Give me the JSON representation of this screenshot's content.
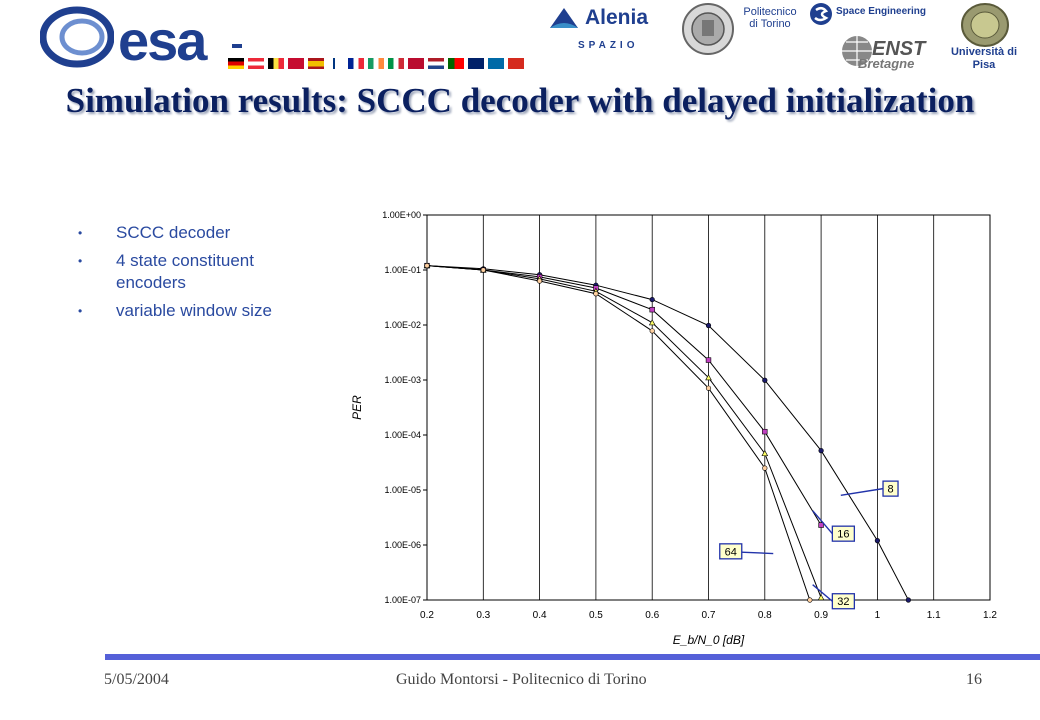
{
  "header": {
    "esa_logo_text": "esa",
    "alenia_text": "Alenia",
    "spazio_text": "SPAZIO",
    "polito_text": "Politecnico di Torino",
    "space_engineering_text": "Space Engineering",
    "enst_text": "ENST",
    "bretagne_text": "Bretagne",
    "pisa_text": "Università di Pisa",
    "colors": {
      "esa_blue": "#1f3f8f",
      "footer_bar": "#5560d8"
    }
  },
  "slide": {
    "title": "Simulation results: SCCC decoder with delayed initialization",
    "bullets": [
      "SCCC decoder",
      "4 state constituent encoders",
      "variable window size"
    ],
    "bullet_icon": "bullet-dot-icon"
  },
  "footer": {
    "date": "5/05/2004",
    "author": "Guido Montorsi - Politecnico di Torino",
    "page": "16"
  },
  "chart_data": {
    "type": "line",
    "xlabel": "E_b/N_0 [dB]",
    "ylabel": "PER",
    "xlim": [
      0.2,
      1.2
    ],
    "ylim": [
      1e-07,
      1
    ],
    "yscale": "log",
    "grid": "vertical-lines-only",
    "x_ticks": [
      "0.2",
      "0.3",
      "0.4",
      "0.5",
      "0.6",
      "0.7",
      "0.8",
      "0.9",
      "1",
      "1.1",
      "1.2"
    ],
    "y_ticks": [
      "1.00E-07",
      "1.00E-06",
      "1.00E-05",
      "1.00E-04",
      "1.00E-03",
      "1.00E-02",
      "1.00E-01",
      "1.00E+00"
    ],
    "series": [
      {
        "name": "8",
        "color": "#000000",
        "marker": "circle",
        "x": [
          0.2,
          0.3,
          0.4,
          0.5,
          0.6,
          0.7,
          0.8,
          0.9,
          1.0,
          1.055
        ],
        "y": [
          0.12,
          0.105,
          0.082,
          0.053,
          0.029,
          0.0098,
          0.00099,
          5.2e-05,
          1.2e-06,
          1e-07
        ]
      },
      {
        "name": "16",
        "color": "#000000",
        "marker": "square",
        "x": [
          0.2,
          0.3,
          0.4,
          0.5,
          0.6,
          0.7,
          0.8,
          0.9
        ],
        "y": [
          0.12,
          0.1,
          0.075,
          0.047,
          0.019,
          0.0023,
          0.000115,
          2.3e-06
        ]
      },
      {
        "name": "32",
        "color": "#000000",
        "marker": "triangle",
        "x": [
          0.2,
          0.3,
          0.4,
          0.5,
          0.6,
          0.7,
          0.8,
          0.9
        ],
        "y": [
          0.12,
          0.1,
          0.069,
          0.041,
          0.011,
          0.0011,
          4.6e-05,
          1.1e-07
        ]
      },
      {
        "name": "64",
        "color": "#000000",
        "marker": "circle-open",
        "x": [
          0.2,
          0.3,
          0.4,
          0.5,
          0.6,
          0.7,
          0.8,
          0.88
        ],
        "y": [
          0.12,
          0.1,
          0.063,
          0.037,
          0.0078,
          0.00071,
          2.5e-05,
          1e-07
        ]
      }
    ],
    "annotations": [
      {
        "text": "8",
        "series": "8"
      },
      {
        "text": "16",
        "series": "16"
      },
      {
        "text": "64",
        "series": "64"
      },
      {
        "text": "32",
        "series": "32"
      }
    ]
  }
}
